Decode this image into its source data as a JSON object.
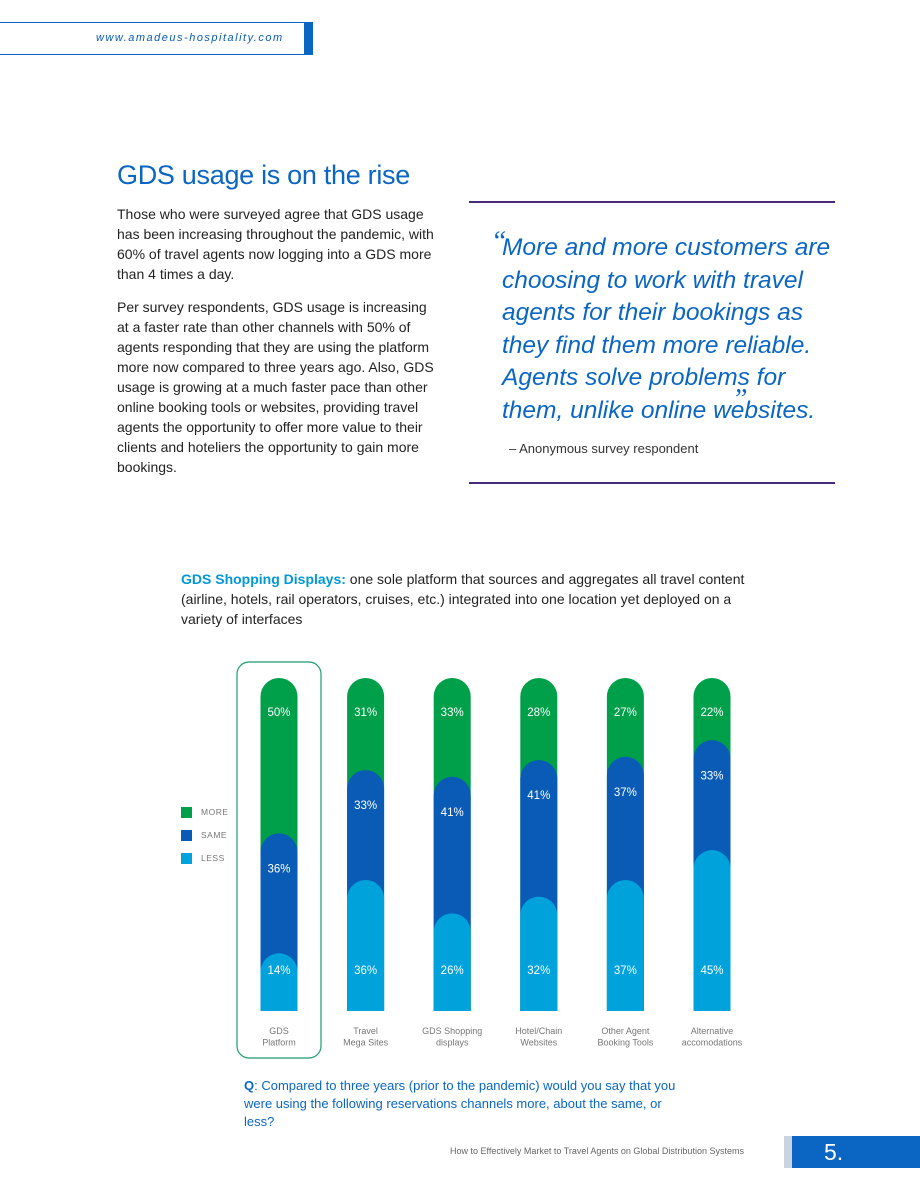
{
  "header": {
    "url": "www.amadeus-hospitality.com"
  },
  "section": {
    "title": "GDS usage is on the rise",
    "paragraphs": [
      "Those who were surveyed agree that GDS usage has been increasing throughout the pandemic, with 60% of travel agents now logging into a GDS more than 4 times a day.",
      "Per survey respondents, GDS usage is increasing at a faster rate than other channels with 50% of agents responding that they are using the platform more now compared to three years ago. Also, GDS usage is growing at a much faster pace than other online booking tools or websites, providing travel agents the opportunity to offer more value to their clients and hoteliers the opportunity to gain more bookings."
    ]
  },
  "quote": {
    "open_mark": "“",
    "close_mark": "”",
    "text": "More and more customers are choosing to work with travel agents for their bookings as they find them more reliable. Agents solve problems for them, unlike online websites.",
    "attribution": "–  Anonymous survey respondent"
  },
  "chart_description": {
    "lead": "GDS Shopping Displays:",
    "text": " one sole platform that sources and aggregates all travel content (airline, hotels, rail operators, cruises, etc.) integrated into one location yet deployed on a variety of interfaces"
  },
  "chart_data": {
    "type": "bar",
    "stacked": true,
    "categories": [
      "GDS Platform",
      "Travel Mega Sites",
      "GDS Shopping displays",
      "Hotel/Chain Websites",
      "Other Agent Booking Tools",
      "Alternative accomodations"
    ],
    "category_lines": [
      [
        "GDS",
        "Platform"
      ],
      [
        "Travel",
        "Mega Sites"
      ],
      [
        "GDS Shopping",
        "displays"
      ],
      [
        "Hotel/Chain",
        "Websites"
      ],
      [
        "Other Agent",
        "Booking Tools"
      ],
      [
        "Alternative",
        "accomodations"
      ]
    ],
    "series": [
      {
        "name": "MORE",
        "color": "#00a04a",
        "values": [
          50,
          31,
          33,
          28,
          27,
          22
        ],
        "labels": [
          "50%",
          "31%",
          "33%",
          "28%",
          "27%",
          "22%"
        ]
      },
      {
        "name": "SAME",
        "color": "#0a5bb5",
        "values": [
          36,
          33,
          41,
          41,
          37,
          33
        ],
        "labels": [
          "36%",
          "33%",
          "41%",
          "41%",
          "37%",
          "33%"
        ]
      },
      {
        "name": "LESS",
        "color": "#00a2dc",
        "values": [
          14,
          36,
          26,
          32,
          37,
          45
        ],
        "labels": [
          "14%",
          "36%",
          "26%",
          "32%",
          "37%",
          "45%"
        ]
      }
    ],
    "highlighted_category": "GDS Platform",
    "legend_position": "left",
    "ylim": [
      0,
      100
    ],
    "grid": false
  },
  "question": {
    "label": "Q",
    "text": ": Compared to three years (prior to the pandemic) would you say that you were using the following reservations channels more, about the same, or less?"
  },
  "footer": {
    "title": "How to Effectively Market to Travel Agents on Global Distribution Systems",
    "page_number": "5."
  }
}
